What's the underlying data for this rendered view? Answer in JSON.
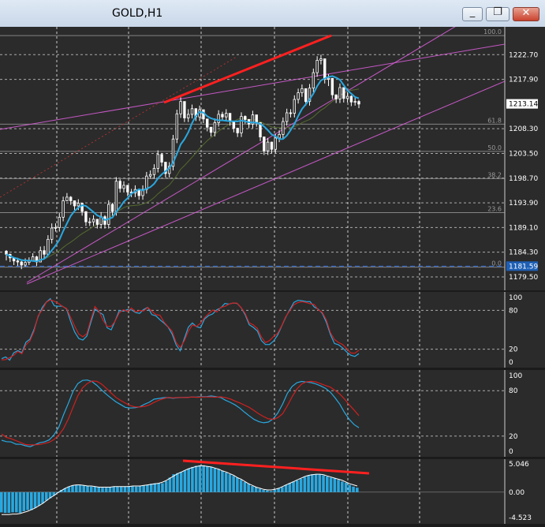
{
  "window": {
    "title": "GOLD,H1",
    "buttons": [
      {
        "name": "minimize-button",
        "icon": "minimize-icon",
        "glyph": "_"
      },
      {
        "name": "restore-button",
        "icon": "restore-icon",
        "glyph": "❐"
      },
      {
        "name": "close-button",
        "icon": "close-icon",
        "glyph": "✕"
      }
    ]
  },
  "colors": {
    "background": "#2b2b2b",
    "grid": "#ffffff",
    "bull_candle": "#ffffff",
    "bear_candle": "#ffffff",
    "ma_fast": "#29a8e0",
    "ma_slow": "#556b2f",
    "trendline": "#e060e0",
    "divergence": "#ff2020",
    "stoch_main": "#29a8e0",
    "stoch_signal": "#d02020",
    "histogram": "#29a8e0",
    "price_box": "#1e5fb4",
    "fib": "#aaaaaa"
  },
  "chart_data": [
    {
      "type": "candlestick",
      "symbol": "GOLD",
      "timeframe": "H1",
      "ylim": [
        1177.5,
        1227.5
      ],
      "price_ticks": [
        "1222.70",
        "1217.90",
        "1213.14",
        "1208.30",
        "1203.50",
        "1198.70",
        "1193.90",
        "1189.10",
        "1184.30",
        "1181.59",
        "1179.50"
      ],
      "price_tick_values": [
        1222.7,
        1217.9,
        1213.14,
        1208.3,
        1203.5,
        1198.7,
        1193.9,
        1189.1,
        1184.3,
        1181.59,
        1179.5
      ],
      "current_price": "1213.14",
      "current_price_value": 1213.14,
      "support_line": "1181.59",
      "support_value": 1181.59,
      "fib_levels": [
        {
          "label": "100.0",
          "value": 1226.4
        },
        {
          "label": "61.8",
          "value": 1209.2
        },
        {
          "label": "50.0",
          "value": 1203.9
        },
        {
          "label": "38.2",
          "value": 1198.6
        },
        {
          "label": "23.6",
          "value": 1192.0
        },
        {
          "label": "0.0",
          "value": 1181.4
        }
      ],
      "close_series": [
        1183.9,
        1183.2,
        1182.6,
        1182.4,
        1181.8,
        1182.3,
        1182.6,
        1183.4,
        1182.4,
        1184.6,
        1183.9,
        1186.8,
        1189.0,
        1189.1,
        1191.1,
        1194.3,
        1195.0,
        1194.3,
        1193.3,
        1193.8,
        1192.2,
        1190.2,
        1190.2,
        1190.7,
        1189.7,
        1191.2,
        1189.7,
        1193.6,
        1192.2,
        1198.1,
        1196.7,
        1197.3,
        1196.0,
        1195.8,
        1196.5,
        1195.3,
        1196.5,
        1199.1,
        1199.4,
        1200.6,
        1203.3,
        1201.8,
        1199.6,
        1201.0,
        1206.3,
        1211.2,
        1213.6,
        1210.4,
        1211.1,
        1212.2,
        1210.6,
        1212.0,
        1210.2,
        1208.6,
        1207.6,
        1209.5,
        1211.1,
        1210.6,
        1211.3,
        1209.7,
        1208.4,
        1207.5,
        1210.7,
        1210.1,
        1209.2,
        1211.0,
        1209.5,
        1206.7,
        1204.0,
        1205.7,
        1204.3,
        1206.5,
        1207.2,
        1209.7,
        1211.4,
        1211.3,
        1214.0,
        1215.3,
        1216.1,
        1213.6,
        1216.2,
        1219.2,
        1221.6,
        1221.9,
        1217.9,
        1218.1,
        1214.9,
        1214.1,
        1216.3,
        1214.2,
        1214.6,
        1213.5,
        1213.6,
        1213.1
      ],
      "high_series": [
        1184.7,
        1184.0,
        1183.3,
        1183.2,
        1182.6,
        1183.1,
        1183.3,
        1184.1,
        1183.6,
        1185.4,
        1185.5,
        1187.6,
        1189.9,
        1189.9,
        1191.9,
        1195.1,
        1195.8,
        1195.2,
        1194.3,
        1194.6,
        1193.0,
        1191.2,
        1191.0,
        1191.5,
        1190.5,
        1192.1,
        1191.5,
        1194.4,
        1193.9,
        1198.9,
        1198.5,
        1198.1,
        1197.2,
        1196.6,
        1197.3,
        1196.1,
        1197.3,
        1199.9,
        1200.2,
        1201.4,
        1204.1,
        1203.6,
        1201.7,
        1201.8,
        1207.1,
        1212.0,
        1214.4,
        1213.6,
        1212.1,
        1213.0,
        1212.3,
        1212.8,
        1211.4,
        1210.2,
        1208.6,
        1210.3,
        1211.9,
        1211.6,
        1212.1,
        1211.1,
        1209.6,
        1208.5,
        1211.5,
        1210.9,
        1210.2,
        1211.8,
        1210.9,
        1209.2,
        1206.8,
        1206.5,
        1205.8,
        1207.3,
        1208.0,
        1210.5,
        1212.2,
        1212.1,
        1214.8,
        1216.1,
        1216.9,
        1216.1,
        1217.0,
        1220.0,
        1222.4,
        1222.7,
        1221.5,
        1218.9,
        1217.5,
        1214.9,
        1217.1,
        1216.3,
        1215.4,
        1214.8,
        1214.4,
        1213.9
      ],
      "low_series": [
        1182.7,
        1182.4,
        1181.8,
        1181.6,
        1181.0,
        1181.5,
        1181.8,
        1182.6,
        1181.6,
        1182.7,
        1183.1,
        1183.6,
        1186.0,
        1188.3,
        1188.3,
        1190.3,
        1194.2,
        1193.5,
        1192.5,
        1192.5,
        1191.4,
        1189.4,
        1189.4,
        1189.4,
        1188.9,
        1188.9,
        1188.9,
        1188.9,
        1191.4,
        1191.4,
        1195.9,
        1195.9,
        1195.2,
        1195.0,
        1195.0,
        1194.5,
        1194.5,
        1195.7,
        1198.6,
        1198.6,
        1199.8,
        1201.0,
        1198.8,
        1198.8,
        1200.2,
        1205.5,
        1210.4,
        1209.6,
        1209.6,
        1210.3,
        1209.8,
        1209.8,
        1209.4,
        1207.8,
        1206.8,
        1206.8,
        1208.7,
        1209.8,
        1209.8,
        1208.9,
        1207.6,
        1206.7,
        1206.7,
        1209.3,
        1208.4,
        1208.4,
        1208.7,
        1205.9,
        1203.2,
        1203.2,
        1203.5,
        1203.5,
        1205.7,
        1206.4,
        1208.9,
        1210.5,
        1210.5,
        1213.2,
        1214.5,
        1212.8,
        1212.8,
        1215.4,
        1218.4,
        1220.8,
        1217.1,
        1216.6,
        1214.1,
        1213.3,
        1213.3,
        1213.4,
        1213.4,
        1212.7,
        1212.8,
        1212.3
      ]
    },
    {
      "type": "line",
      "indicator": "stochastic",
      "ylim": [
        0,
        100
      ],
      "tick_labels": [
        "100",
        "80",
        "20",
        "0"
      ],
      "tick_values": [
        100,
        80,
        20,
        0
      ],
      "series": [
        {
          "values": [
            5.3,
            7.9,
            3.1,
            14.4,
            17.8,
            14.7,
            30.7,
            35.5,
            50.6,
            70.1,
            84.4,
            92.6,
            98.0,
            86.9,
            86.3,
            86.5,
            82.2,
            63.2,
            46.6,
            36.6,
            34.1,
            40.4,
            62.0,
            82.0,
            77.3,
            73.3,
            53.0,
            49.9,
            64.1,
            79.9,
            78.6,
            81.2,
            80.7,
            76.6,
            75.4,
            81.3,
            84.6,
            73.4,
            71.6,
            65.5,
            60.4,
            54.2,
            43.4,
            26.4,
            17.4,
            35.8,
            54.0,
            60.6,
            54.7,
            53.0,
            66.7,
            72.0,
            74.5,
            80.9,
            84.0,
            90.6,
            89.6,
            91.5,
            90.7,
            84.3,
            73.0,
            57.8,
            53.6,
            48.2,
            33.2,
            27.1,
            27.3,
            32.4,
            41.8,
            55.7,
            69.5,
            81.1,
            92.3,
            95.5,
            94.9,
            93.6,
            93.4,
            85.2,
            82.0,
            75.2,
            61.5,
            42.4,
            28.8,
            26.7,
            22.1,
            15.6,
            10.7,
            8.8,
            13.0
          ]
        },
        {
          "values": [
            3.5,
            3.9,
            6.9,
            10.5,
            16.5,
            12.9,
            26.7,
            32.9,
            47.7,
            71.7,
            80.6,
            92.3,
            96.3,
            94.0,
            90.9,
            86.1,
            83.1,
            69.2,
            55.5,
            43.4,
            39.2,
            44.0,
            66.3,
            85.9,
            78.6,
            64.7,
            55.3,
            55.2,
            63.7,
            76.4,
            80.9,
            78.4,
            83.6,
            77.5,
            79.8,
            79.2,
            84.5,
            78.7,
            73.4,
            72.5,
            61.9,
            54.7,
            47.8,
            30.1,
            22.4,
            32.7,
            47.8,
            57.5,
            55.1,
            60.1,
            68.8,
            74.8,
            80.5,
            77.4,
            84.8,
            86.1,
            89.5,
            91.5,
            91.1,
            84.4,
            75.1,
            60.7,
            57.4,
            51.9,
            38.5,
            30.2,
            33.4,
            39.5,
            44.5,
            56.4,
            70.4,
            79.5,
            88.7,
            92.1,
            93.4,
            92.2,
            90.2,
            89.1,
            80.9,
            76.7,
            65.1,
            45.4,
            34.9,
            30.4,
            27.2,
            20.8,
            14.2,
            13.6,
            18.5
          ]
        }
      ]
    },
    {
      "type": "line",
      "indicator": "stochastic-slow",
      "ylim": [
        0,
        100
      ],
      "tick_labels": [
        "100",
        "80",
        "20",
        "0"
      ],
      "tick_values": [
        100,
        80,
        20,
        0
      ],
      "series": [
        {
          "values": [
            14.6,
            12.7,
            12.3,
            9.4,
            9.2,
            7.3,
            6.0,
            8.6,
            11.3,
            12.4,
            15.0,
            21.6,
            31.7,
            48.0,
            63.2,
            79.1,
            89.3,
            93.5,
            94.1,
            91.9,
            87.0,
            80.9,
            75.2,
            70.1,
            65.2,
            61.7,
            57.9,
            57.1,
            57.5,
            58.6,
            62.1,
            64.7,
            68.8,
            69.7,
            70.7,
            70.8,
            70.0,
            70.8,
            71.0,
            71.3,
            71.6,
            71.7,
            72.1,
            72.1,
            73.1,
            72.0,
            70.9,
            67.4,
            64.6,
            61.2,
            57.0,
            51.7,
            46.7,
            42.1,
            39.2,
            37.6,
            38.5,
            42.8,
            50.6,
            62.5,
            76.6,
            85.6,
            90.6,
            92.2,
            91.4,
            90.6,
            88.9,
            86.3,
            83.1,
            78.1,
            70.5,
            62.2,
            51.0,
            42.1,
            35.2,
            31.1
          ]
        },
        {
          "values": [
            22.8,
            18.3,
            16.6,
            14.1,
            11.6,
            8.9,
            8.4,
            8.5,
            9.0,
            10.3,
            11.9,
            15.4,
            21.4,
            29.8,
            42.6,
            58.0,
            73.1,
            83.8,
            89.5,
            92.7,
            92.4,
            88.7,
            83.0,
            76.9,
            71.1,
            67.1,
            63.5,
            60.3,
            58.5,
            58.4,
            59.3,
            61.1,
            64.5,
            67.4,
            69.5,
            71.1,
            70.5,
            71.0,
            71.0,
            70.9,
            71.7,
            71.3,
            71.6,
            71.7,
            71.7,
            71.4,
            71.9,
            70.9,
            69.1,
            66.4,
            63.9,
            60.9,
            57.9,
            53.7,
            49.4,
            45.8,
            42.8,
            42.3,
            44.5,
            49.6,
            60.2,
            72.0,
            82.3,
            88.9,
            91.7,
            92.3,
            91.6,
            89.2,
            86.8,
            84.7,
            80.4,
            75.5,
            68.9,
            61.2,
            54.4,
            47.1
          ]
        }
      ]
    },
    {
      "type": "bar",
      "indicator": "histogram",
      "ylim": [
        -4.523,
        5.046
      ],
      "tick_labels": [
        "5.046",
        "0.00",
        "-4.523"
      ],
      "tick_values": [
        5.046,
        0,
        -4.523
      ],
      "values": [
        -3.6,
        -3.7,
        -3.7,
        -3.6,
        -3.6,
        -3.7,
        -3.4,
        -3.2,
        -3.2,
        -2.8,
        -2.4,
        -2.0,
        -1.5,
        -1.1,
        -0.6,
        -0.1,
        0.4,
        0.7,
        1.0,
        1.2,
        1.3,
        1.3,
        1.2,
        1.1,
        1.0,
        1.0,
        0.9,
        0.8,
        0.8,
        0.9,
        1.0,
        1.0,
        1.0,
        1.0,
        1.1,
        1.1,
        1.0,
        1.1,
        1.2,
        1.3,
        1.5,
        1.6,
        1.6,
        1.6,
        2.0,
        2.6,
        3.2,
        3.4,
        3.6,
        3.9,
        4.2,
        4.5,
        4.7,
        4.8,
        4.8,
        4.6,
        4.5,
        4.3,
        4.1,
        3.8,
        3.5,
        3.2,
        2.9,
        2.6,
        2.2,
        1.8,
        1.5,
        1.1,
        0.9,
        0.6,
        0.4,
        0.3,
        0.2,
        0.4,
        0.7,
        0.9,
        1.3,
        1.6,
        1.9,
        2.1,
        2.4,
        2.7,
        3.0,
        3.2,
        3.2,
        3.2,
        3.0,
        2.8,
        2.6,
        2.5,
        2.2,
        1.9,
        1.7,
        1.3,
        1.0,
        0.8
      ],
      "signal": [
        -4.0,
        -4.0,
        -4.0,
        -3.9,
        -3.9,
        -3.8,
        -3.6,
        -3.4,
        -3.1,
        -2.8,
        -2.4,
        -2.0,
        -1.5,
        -1.0,
        -0.6,
        -0.1,
        0.3,
        0.7,
        1.0,
        1.2,
        1.3,
        1.3,
        1.2,
        1.1,
        1.1,
        1.0,
        0.9,
        0.9,
        0.9,
        0.9,
        1.0,
        1.0,
        1.0,
        1.0,
        1.0,
        1.1,
        1.1,
        1.1,
        1.2,
        1.3,
        1.4,
        1.5,
        1.6,
        1.8,
        2.1,
        2.5,
        2.9,
        3.3,
        3.6,
        3.9,
        4.2,
        4.4,
        4.6,
        4.7,
        4.7,
        4.6,
        4.5,
        4.3,
        4.1,
        3.8,
        3.6,
        3.3,
        3.0,
        2.6,
        2.3,
        1.9,
        1.5,
        1.2,
        0.9,
        0.7,
        0.5,
        0.4,
        0.4,
        0.5,
        0.7,
        1.0,
        1.3,
        1.6,
        1.9,
        2.2,
        2.5,
        2.8,
        3.0,
        3.1,
        3.2,
        3.2,
        3.1,
        2.9,
        2.7,
        2.5,
        2.3,
        2.1,
        1.8,
        1.5,
        1.3,
        1.1
      ]
    }
  ]
}
